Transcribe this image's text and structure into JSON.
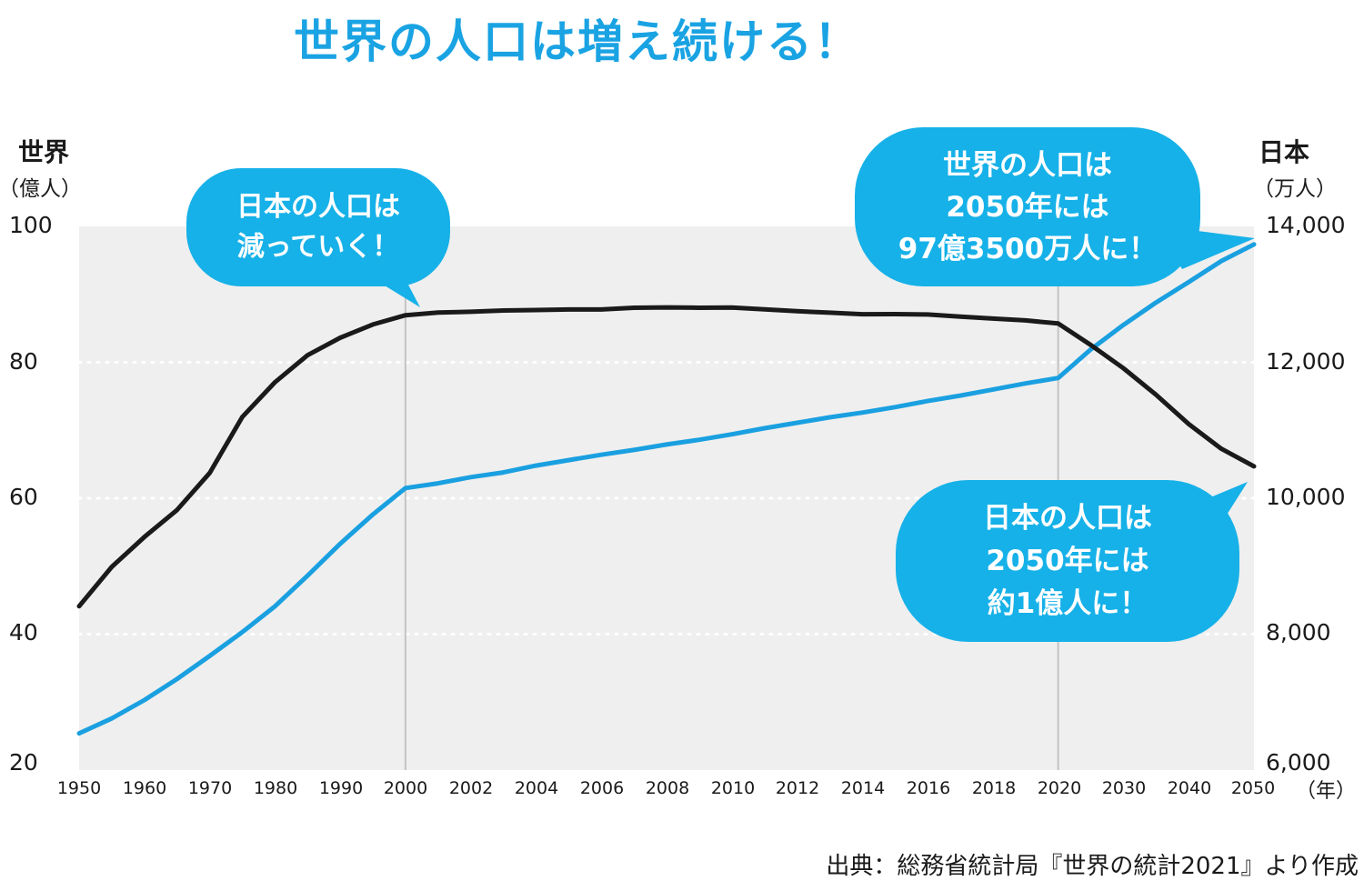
{
  "title": "世界の人口は増え続ける！",
  "left_axis": {
    "head": "世界",
    "unit": "（億人）"
  },
  "right_axis": {
    "head": "日本",
    "unit": "（万人）"
  },
  "x_unit": "（年）",
  "source": "出典：総務省統計局『世界の統計2021』より作成",
  "bubbles": {
    "japan_decline": [
      "日本の人口は",
      "減っていく！"
    ],
    "world_2050": [
      "世界の人口は",
      "2050年には",
      "97億3500万人に！"
    ],
    "japan_2050": [
      "日本の人口は",
      "2050年には",
      "約1億人に！"
    ]
  },
  "colors": {
    "world_line": "#1aa0e0",
    "japan_line": "#1a1a1a",
    "bubble": "#16b1e8",
    "plot_bg": "#efefef",
    "title": "#1aa3e3"
  },
  "chart_data": {
    "type": "line",
    "x": [
      "1950",
      "1960",
      "1970",
      "1980",
      "1990",
      "2000",
      "2002",
      "2004",
      "2006",
      "2008",
      "2010",
      "2012",
      "2014",
      "2016",
      "2018",
      "2020",
      "2030",
      "2040",
      "2050"
    ],
    "x_note": "axis is not linear in time: 1950–2000 by 10 years, 2000–2020 by 2 years, 2020–2050 by 10 years",
    "left_axis": {
      "label": "世界（億人）",
      "ylim": [
        20,
        100
      ],
      "ticks": [
        100,
        80,
        60,
        40,
        20
      ]
    },
    "right_axis": {
      "label": "日本（万人）",
      "ylim": [
        6000,
        14000
      ],
      "ticks": [
        "14,000",
        "12,000",
        "10,000",
        "8,000",
        "6,000"
      ]
    },
    "series": [
      {
        "name": "世界",
        "axis": "left",
        "x": [
          1950,
          1955,
          1960,
          1965,
          1970,
          1975,
          1980,
          1985,
          1990,
          1995,
          2000,
          2001,
          2002,
          2003,
          2004,
          2005,
          2006,
          2007,
          2008,
          2009,
          2010,
          2011,
          2012,
          2013,
          2014,
          2015,
          2016,
          2017,
          2018,
          2019,
          2020,
          2025,
          2030,
          2035,
          2040,
          2045,
          2050
        ],
        "values": [
          25.4,
          27.6,
          30.3,
          33.4,
          36.8,
          40.3,
          44.1,
          48.6,
          53.3,
          57.6,
          61.5,
          62.2,
          63.1,
          63.8,
          64.8,
          65.6,
          66.4,
          67.1,
          67.9,
          68.6,
          69.4,
          70.3,
          71.1,
          71.9,
          72.6,
          73.4,
          74.3,
          75.1,
          76.0,
          76.9,
          77.7,
          81.9,
          85.5,
          88.8,
          91.8,
          94.9,
          97.35
        ]
      },
      {
        "name": "日本",
        "axis": "right",
        "x": [
          1950,
          1955,
          1960,
          1965,
          1970,
          1975,
          1980,
          1985,
          1990,
          1995,
          2000,
          2001,
          2002,
          2003,
          2004,
          2005,
          2006,
          2007,
          2008,
          2009,
          2010,
          2011,
          2012,
          2013,
          2014,
          2015,
          2016,
          2017,
          2018,
          2019,
          2020,
          2025,
          2030,
          2035,
          2040,
          2045,
          2050
        ],
        "values": [
          8411,
          8990,
          9430,
          9828,
          10372,
          11194,
          11706,
          12105,
          12361,
          12557,
          12693,
          12732,
          12744,
          12762,
          12769,
          12777,
          12777,
          12803,
          12808,
          12803,
          12806,
          12780,
          12752,
          12730,
          12708,
          12709,
          12704,
          12671,
          12644,
          12617,
          12571,
          12254,
          11913,
          11522,
          11092,
          10728,
          10469
        ]
      }
    ]
  }
}
